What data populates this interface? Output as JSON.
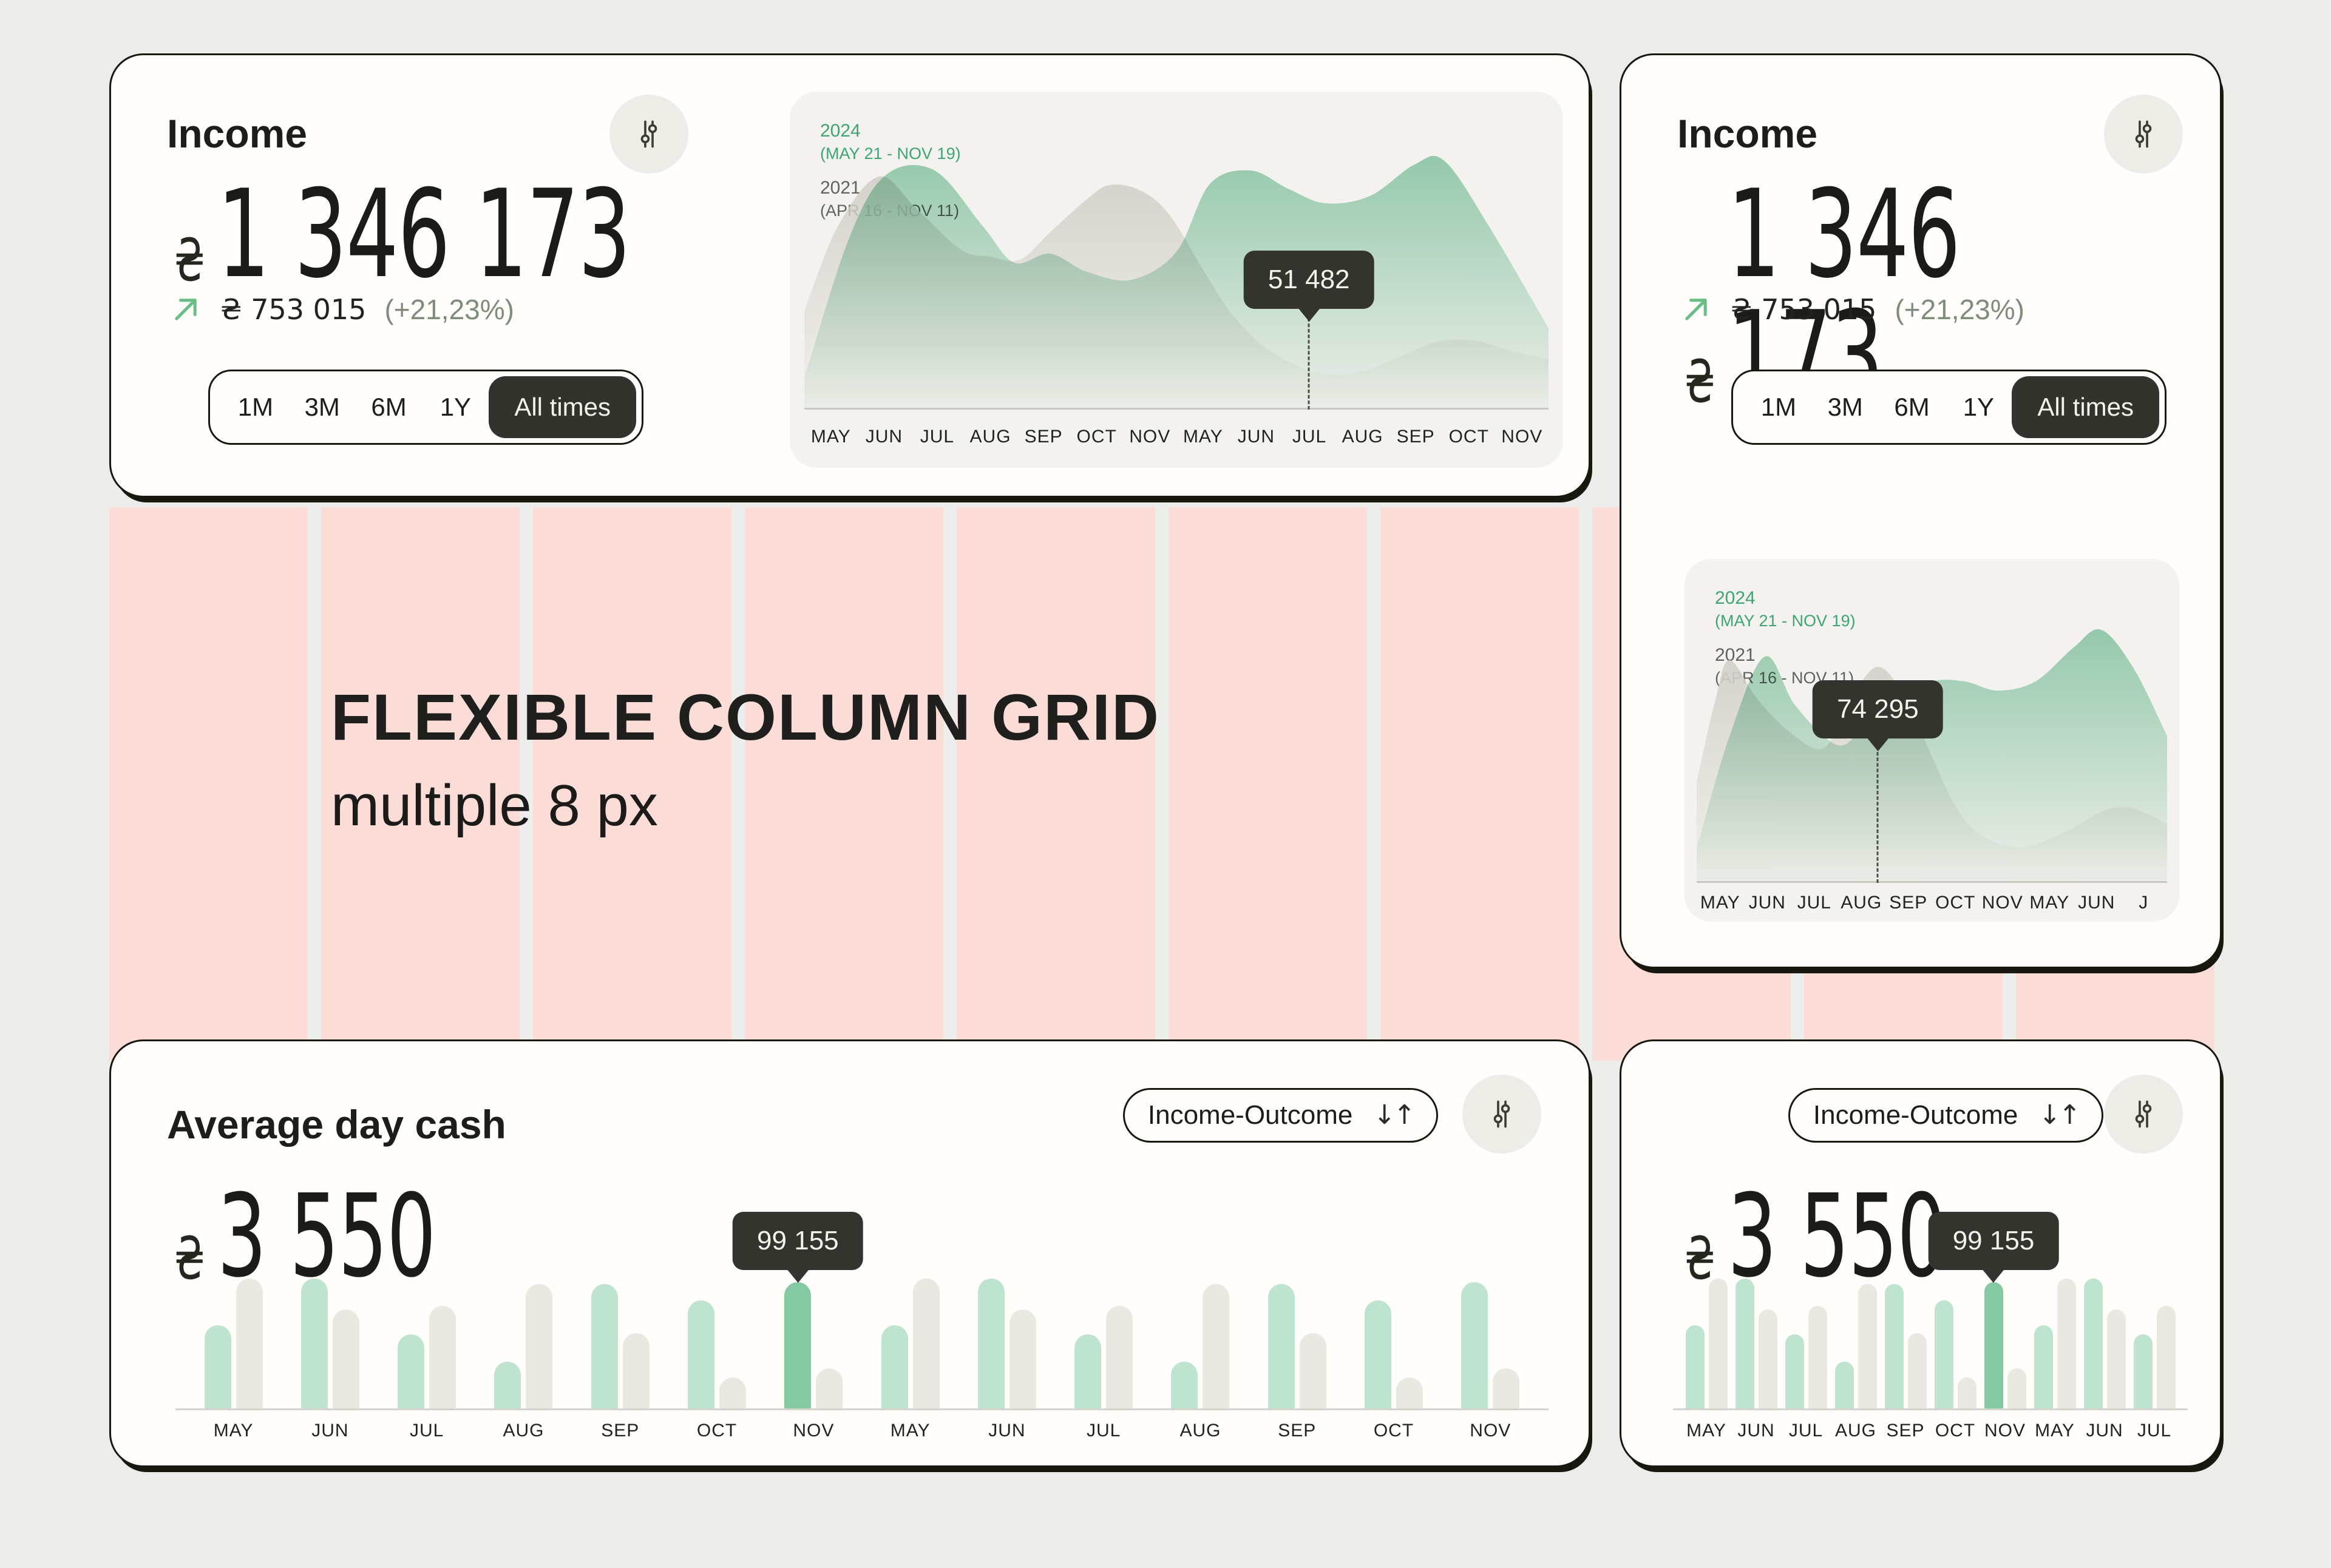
{
  "caption": {
    "title": "FLEXIBLE COLUMN GRID",
    "subtitle": "multiple 8 px"
  },
  "income_card": {
    "title": "Income",
    "currency": "₴",
    "value": "1 346 173",
    "trend": {
      "amount": "₴ 753 015",
      "percent": "(+21,23%)"
    },
    "ranges": [
      "1M",
      "3M",
      "6M",
      "1Y"
    ],
    "selected_range": "All times"
  },
  "cash_card": {
    "title": "Average day cash",
    "currency": "₴",
    "value": "3 550",
    "selector_label": "Income-Outcome"
  },
  "icons": {
    "filter": "sliders-filter-icon",
    "sort": "sort-arrows-icon",
    "trend": "arrow-up-right-icon"
  },
  "colors": {
    "pink_grid": "#fcdcd6",
    "card_bg": "#fffefb",
    "ink": "#18180f",
    "mint_bar": "#bee3ce",
    "highlight_bar": "#85c8a4",
    "gray_bar": "#e9e8e1",
    "area_green": "#97d1b3",
    "area_gray": "#d3d1c9",
    "legend_green": "#3ea473",
    "legend_gray": "#62625b",
    "dark_chip": "#33332d"
  },
  "chart_data": [
    {
      "id": "area_income_left",
      "type": "area",
      "legend": [
        {
          "label": "2024",
          "range": "(MAY 21 - NOV 19)"
        },
        {
          "label": "2021",
          "range": "(APR 16 - NOV 11)"
        }
      ],
      "months": [
        "MAY",
        "JUN",
        "JUL",
        "AUG",
        "SEP",
        "OCT",
        "NOV",
        "MAY",
        "JUN",
        "JUL",
        "AUG",
        "SEP",
        "OCT",
        "NOV"
      ],
      "tooltip": {
        "value": "51 482",
        "x_frac": 0.678
      },
      "series": [
        {
          "name": "2024 (MAY 21 - NOV 19)",
          "color": "#97d1b3",
          "points": [
            [
              0,
              50
            ],
            [
              60,
              280
            ],
            [
              110,
              385
            ],
            [
              175,
              392
            ],
            [
              240,
              300
            ],
            [
              282,
              240
            ],
            [
              330,
              255
            ],
            [
              380,
              225
            ],
            [
              440,
              212
            ],
            [
              500,
              258
            ],
            [
              545,
              370
            ],
            [
              600,
              392
            ],
            [
              650,
              362
            ],
            [
              700,
              338
            ],
            [
              760,
              350
            ],
            [
              820,
              402
            ],
            [
              860,
              408
            ],
            [
              920,
              300
            ],
            [
              1000,
              132
            ]
          ]
        },
        {
          "name": "2021 (APR 16 - NOV 11)",
          "color": "#d3d1c9",
          "points": [
            [
              0,
              160
            ],
            [
              45,
              300
            ],
            [
              100,
              382
            ],
            [
              150,
              330
            ],
            [
              210,
              262
            ],
            [
              250,
              250
            ],
            [
              290,
              245
            ],
            [
              330,
              290
            ],
            [
              380,
              345
            ],
            [
              410,
              368
            ],
            [
              450,
              360
            ],
            [
              490,
              320
            ],
            [
              540,
              220
            ],
            [
              575,
              155
            ],
            [
              620,
              100
            ],
            [
              680,
              62
            ],
            [
              740,
              58
            ],
            [
              800,
              85
            ],
            [
              850,
              110
            ],
            [
              900,
              112
            ],
            [
              950,
              95
            ],
            [
              1000,
              80
            ]
          ]
        }
      ]
    },
    {
      "id": "area_income_right",
      "type": "area",
      "legend": [
        {
          "label": "2024",
          "range": "(MAY 21 - NOV 19)"
        },
        {
          "label": "2021",
          "range": "(APR 16 - NOV 11)"
        }
      ],
      "months": [
        "MAY",
        "JUN",
        "JUL",
        "AUG",
        "SEP",
        "OCT",
        "NOV",
        "MAY",
        "JUN",
        "J"
      ],
      "tooltip": {
        "value": "74 295",
        "x_frac": 0.385
      },
      "series": [
        {
          "name": "2024 (MAY 21 - NOV 19)",
          "color": "#97d1b3",
          "points": [
            [
              0,
              55
            ],
            [
              70,
              240
            ],
            [
              145,
              371
            ],
            [
              210,
              290
            ],
            [
              300,
              225
            ],
            [
              360,
              260
            ],
            [
              420,
              300
            ],
            [
              500,
              330
            ],
            [
              570,
              330
            ],
            [
              640,
              315
            ],
            [
              720,
              330
            ],
            [
              800,
              385
            ],
            [
              860,
              415
            ],
            [
              930,
              350
            ],
            [
              1000,
              240
            ]
          ]
        },
        {
          "name": "2021 (APR 16 - NOV 11)",
          "color": "#d3d1c9",
          "points": [
            [
              0,
              165
            ],
            [
              40,
              300
            ],
            [
              70,
              365
            ],
            [
              130,
              300
            ],
            [
              200,
              245
            ],
            [
              270,
              220
            ],
            [
              320,
              290
            ],
            [
              385,
              354
            ],
            [
              450,
              290
            ],
            [
              550,
              125
            ],
            [
              620,
              70
            ],
            [
              700,
              58
            ],
            [
              790,
              85
            ],
            [
              870,
              118
            ],
            [
              930,
              120
            ],
            [
              1000,
              95
            ]
          ]
        }
      ]
    },
    {
      "id": "bars_cash_left",
      "type": "bar",
      "months": [
        "MAY",
        "JUN",
        "JUL",
        "AUG",
        "SEP",
        "OCT",
        "NOV",
        "MAY",
        "JUN",
        "JUL",
        "AUG",
        "SEP",
        "OCT",
        "NOV"
      ],
      "series": [
        {
          "name": "Income",
          "values": [
            0.64,
            1.0,
            0.57,
            0.36,
            0.96,
            0.83,
            0.97,
            0.64,
            1.0,
            0.57,
            0.36,
            0.96,
            0.83,
            0.97
          ]
        },
        {
          "name": "Outcome",
          "values": [
            1.0,
            0.76,
            0.79,
            0.96,
            0.58,
            0.24,
            0.31,
            1.0,
            0.76,
            0.79,
            0.96,
            0.58,
            0.24,
            0.31
          ]
        }
      ],
      "highlight": {
        "month_index": 6,
        "series": "Income"
      },
      "tooltip": {
        "value": "99 155"
      }
    },
    {
      "id": "bars_cash_right",
      "type": "bar",
      "months": [
        "MAY",
        "JUN",
        "JUL",
        "AUG",
        "SEP",
        "OCT",
        "NOV",
        "MAY",
        "JUN",
        "JUL"
      ],
      "series": [
        {
          "name": "Income",
          "values": [
            0.64,
            1.0,
            0.57,
            0.36,
            0.96,
            0.83,
            0.97,
            0.64,
            1.0,
            0.57
          ]
        },
        {
          "name": "Outcome",
          "values": [
            1.0,
            0.76,
            0.79,
            0.96,
            0.58,
            0.24,
            0.31,
            1.0,
            0.76,
            0.79
          ]
        }
      ],
      "highlight": {
        "month_index": 6,
        "series": "Income"
      },
      "tooltip": {
        "value": "99 155"
      }
    }
  ]
}
